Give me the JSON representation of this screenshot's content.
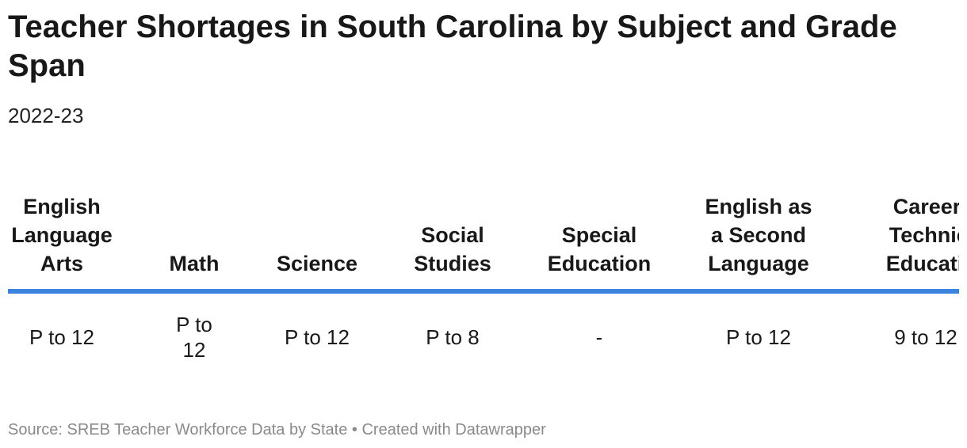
{
  "title": "Teacher Shortages in South Carolina by Subject and Grade Span",
  "subtitle": "2022-23",
  "chart_data": {
    "type": "table",
    "columns": [
      "English Language Arts",
      "Math",
      "Science",
      "Social Studies",
      "Special Education",
      "English as a Second Language",
      "Career & Technical Education"
    ],
    "rows": [
      [
        "P to 12",
        "P to 12",
        "P to 12",
        "P to 8",
        "-",
        "P to 12",
        "9 to 12"
      ]
    ]
  },
  "colors": {
    "header_rule": "#3b84e0",
    "source_text": "#8a8a8a"
  },
  "footer": {
    "source": "Source: SREB Teacher Workforce Data by State • Created with Datawrapper"
  }
}
